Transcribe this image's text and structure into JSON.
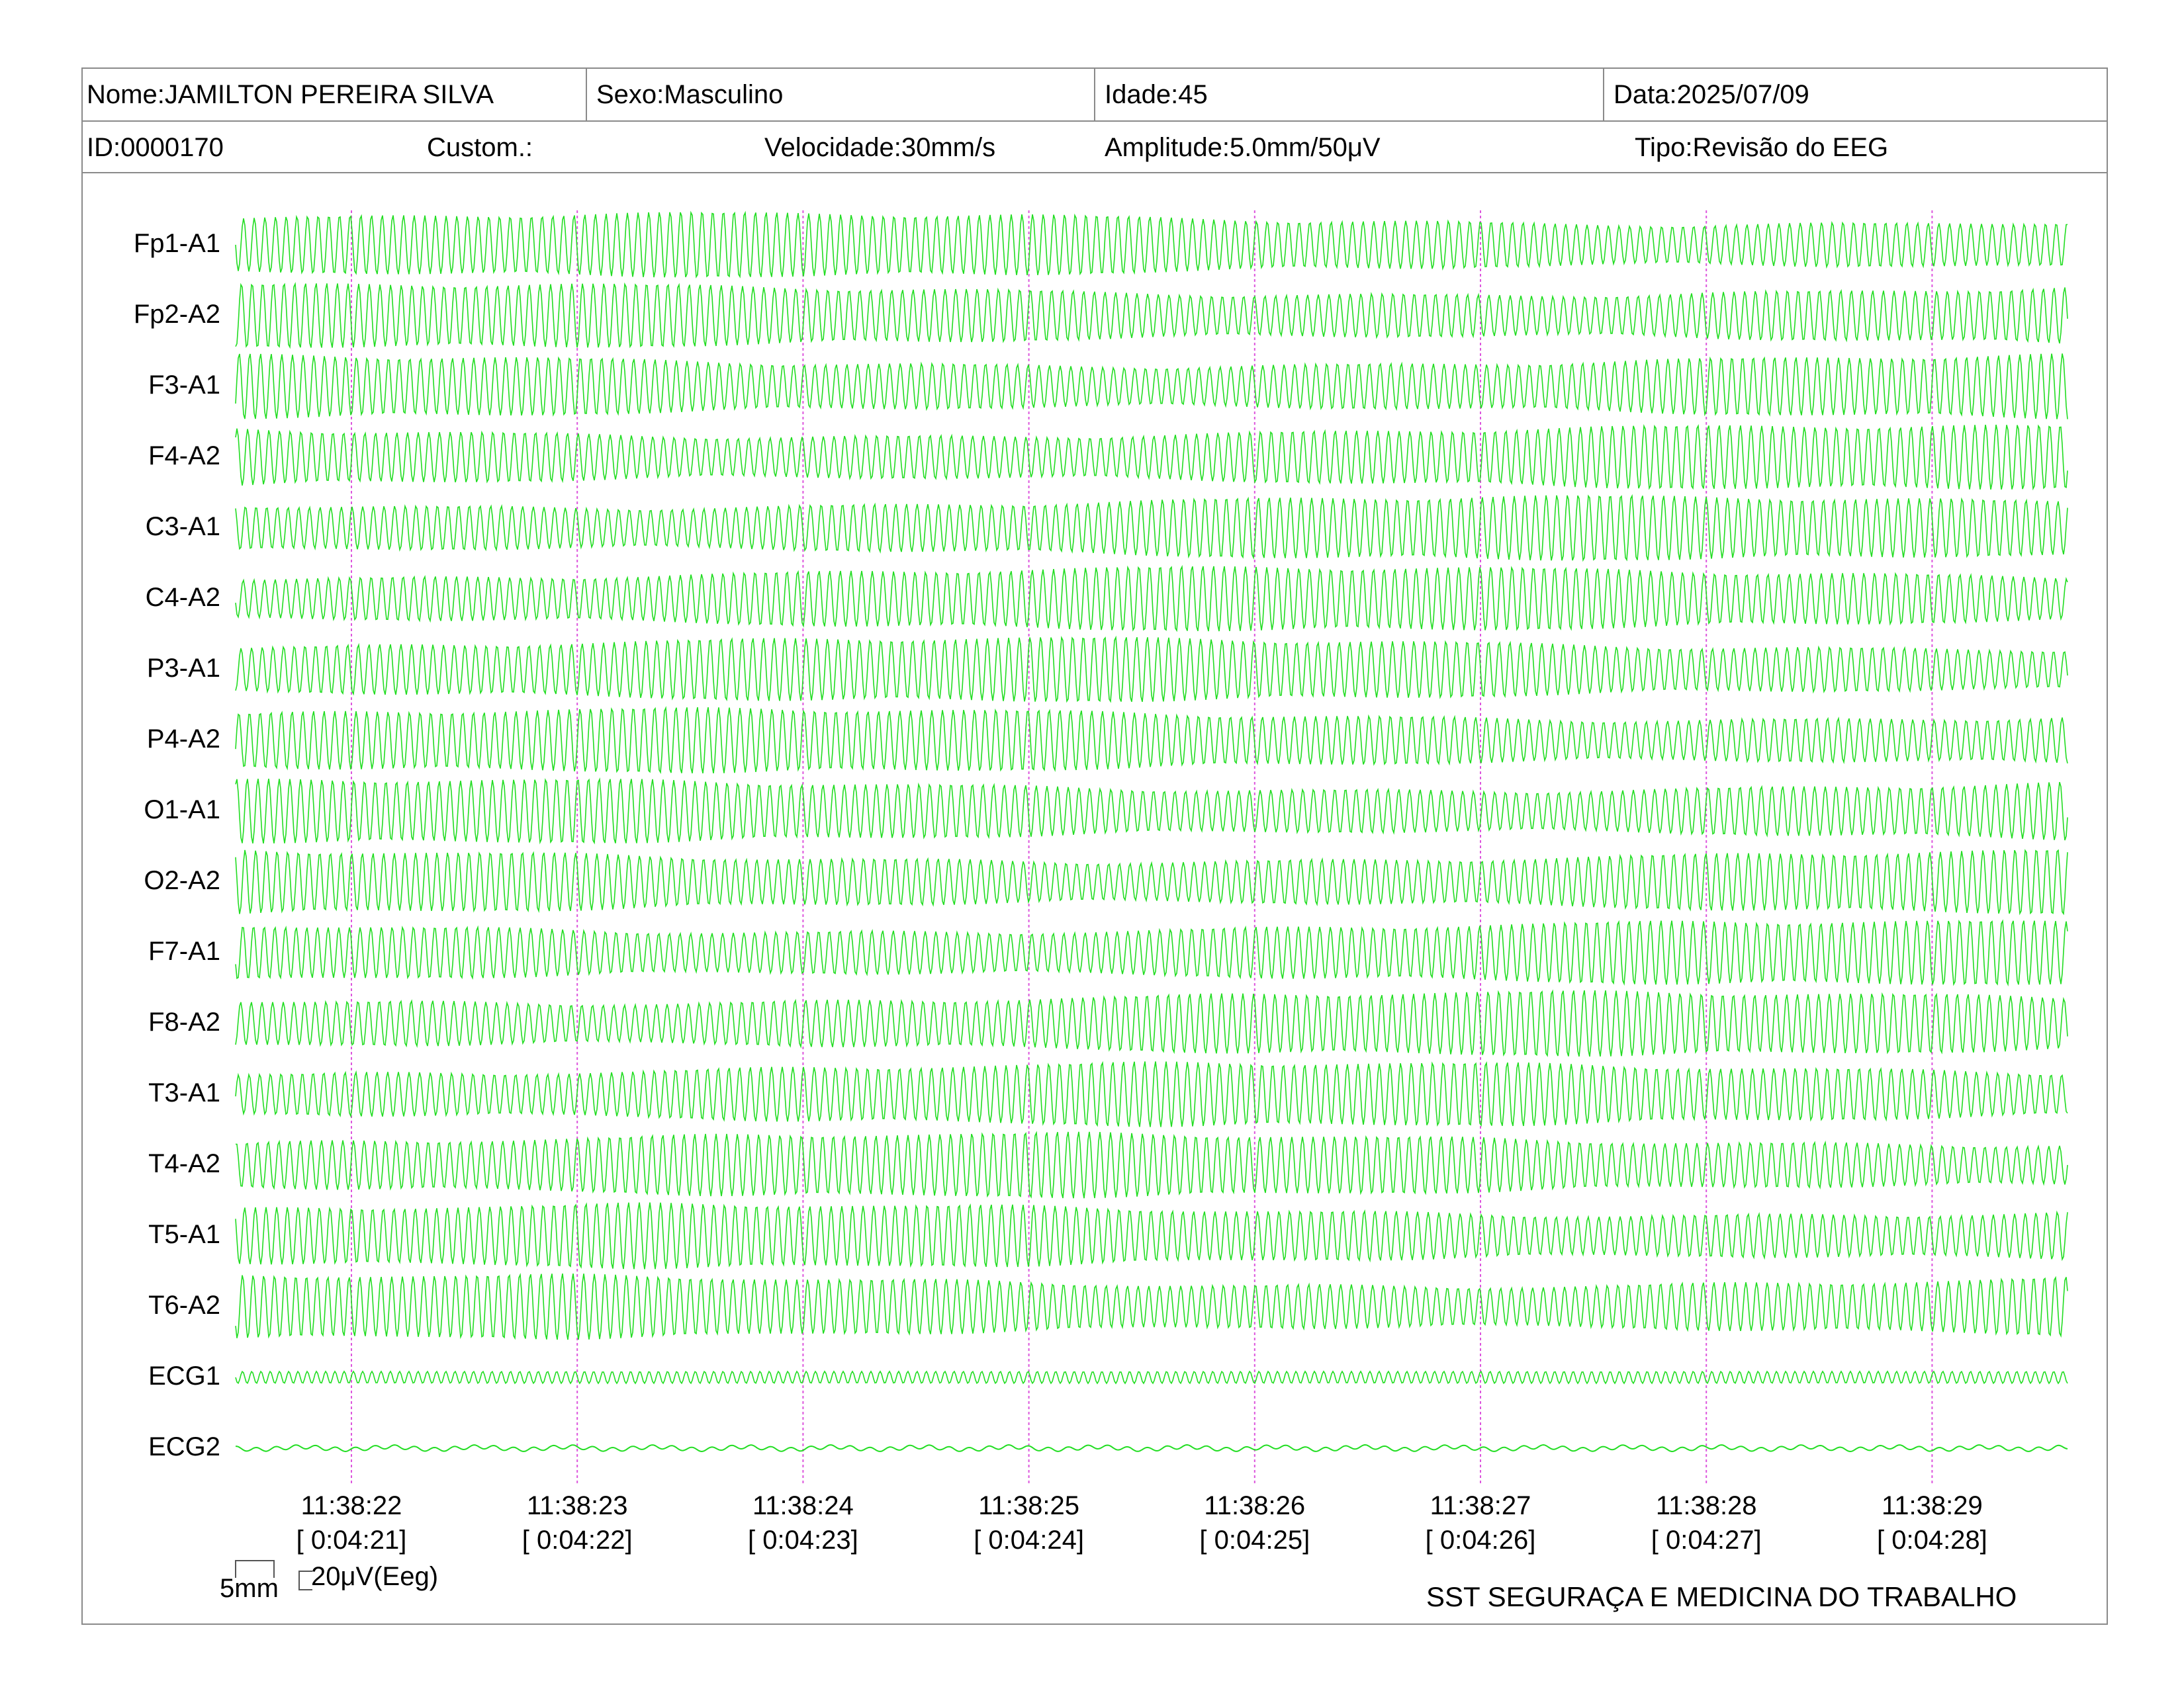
{
  "header": {
    "nome": "Nome:JAMILTON PEREIRA SILVA",
    "sexo": "Sexo:Masculino",
    "idade": "Idade:45",
    "data": "Data:2025/07/09",
    "id": "ID:0000170",
    "custom": "Custom.:",
    "velocidade": "Velocidade:30mm/s",
    "amplitude": "Amplitude:5.0mm/50μV",
    "tipo": "Tipo:Revisão do EEG"
  },
  "channels": [
    "Fp1-A1",
    "Fp2-A2",
    "F3-A1",
    "F4-A2",
    "C3-A1",
    "C4-A2",
    "P3-A1",
    "P4-A2",
    "O1-A1",
    "O2-A2",
    "F7-A1",
    "F8-A2",
    "T3-A1",
    "T4-A2",
    "T5-A1",
    "T6-A2",
    "ECG1",
    "ECG2"
  ],
  "time_marks": [
    {
      "clock": "11:38:22",
      "elapsed": "[ 0:04:21]"
    },
    {
      "clock": "11:38:23",
      "elapsed": "[ 0:04:22]"
    },
    {
      "clock": "11:38:24",
      "elapsed": "[ 0:04:23]"
    },
    {
      "clock": "11:38:25",
      "elapsed": "[ 0:04:24]"
    },
    {
      "clock": "11:38:26",
      "elapsed": "[ 0:04:25]"
    },
    {
      "clock": "11:38:27",
      "elapsed": "[ 0:04:26]"
    },
    {
      "clock": "11:38:28",
      "elapsed": "[ 0:04:27]"
    },
    {
      "clock": "11:38:29",
      "elapsed": "[ 0:04:28]"
    }
  ],
  "scale": {
    "time_label": "5mm",
    "amp_label": "20μV(Eeg)"
  },
  "footer": {
    "clinic": "SST SEGURAÇA E MEDICINA DO TRABALHO"
  },
  "colors": {
    "trace": "#22dd22",
    "marker": "#dd55dd",
    "border": "#8a8a8a"
  }
}
